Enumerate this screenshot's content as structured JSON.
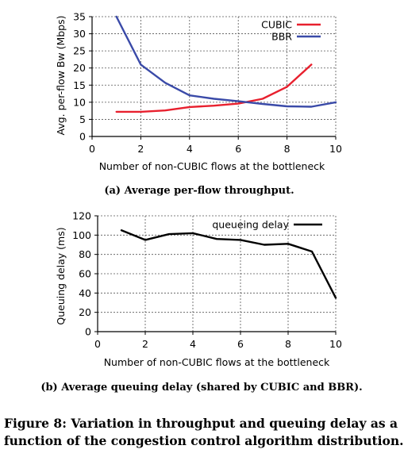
{
  "figure": {
    "caption_line1": "Figure 8: Variation in throughput and queuing delay as a",
    "caption_line2": "function of the congestion control algorithm distribution."
  },
  "chart_data": [
    {
      "id": "throughput",
      "type": "line",
      "caption": "(a) Average per-flow throughput.",
      "xlabel": "Number of non-CUBIC flows at the bottleneck",
      "ylabel": "Avg. per-flow Bw (Mbps)",
      "xlim": [
        0,
        10
      ],
      "ylim": [
        0,
        35
      ],
      "xticks": [
        0,
        2,
        4,
        6,
        8,
        10
      ],
      "yticks": [
        0,
        5,
        10,
        15,
        20,
        25,
        30,
        35
      ],
      "grid": true,
      "legend": "top-right",
      "x": [
        1,
        2,
        3,
        4,
        5,
        6,
        7,
        8,
        9,
        10
      ],
      "series": [
        {
          "name": "CUBIC",
          "color": "#e8202e",
          "x": [
            1,
            2,
            3,
            4,
            5,
            6,
            7,
            8,
            9
          ],
          "values": [
            7.2,
            7.2,
            7.6,
            8.6,
            9.0,
            9.6,
            11.0,
            14.5,
            21.0
          ]
        },
        {
          "name": "BBR",
          "color": "#3a4aa8",
          "x": [
            1,
            2,
            3,
            4,
            5,
            6,
            7,
            8,
            9,
            10
          ],
          "values": [
            35.0,
            21.0,
            15.7,
            12.0,
            11.0,
            10.3,
            9.5,
            8.8,
            8.7,
            10.0
          ]
        }
      ]
    },
    {
      "id": "delay",
      "type": "line",
      "caption": "(b) Average queuing delay (shared by CUBIC and BBR).",
      "xlabel": "Number of non-CUBIC flows at the bottleneck",
      "ylabel": "Queuing delay (ms)",
      "xlim": [
        0,
        10
      ],
      "ylim": [
        0,
        120
      ],
      "xticks": [
        0,
        2,
        4,
        6,
        8,
        10
      ],
      "yticks": [
        0,
        20,
        40,
        60,
        80,
        100,
        120
      ],
      "grid": true,
      "legend": "top-right",
      "series": [
        {
          "name": "queueing delay",
          "color": "#000000",
          "x": [
            1,
            2,
            3,
            4,
            5,
            6,
            7,
            8,
            9,
            10
          ],
          "values": [
            105,
            95,
            101,
            102,
            96,
            95,
            90,
            91,
            83,
            35
          ]
        }
      ]
    }
  ]
}
